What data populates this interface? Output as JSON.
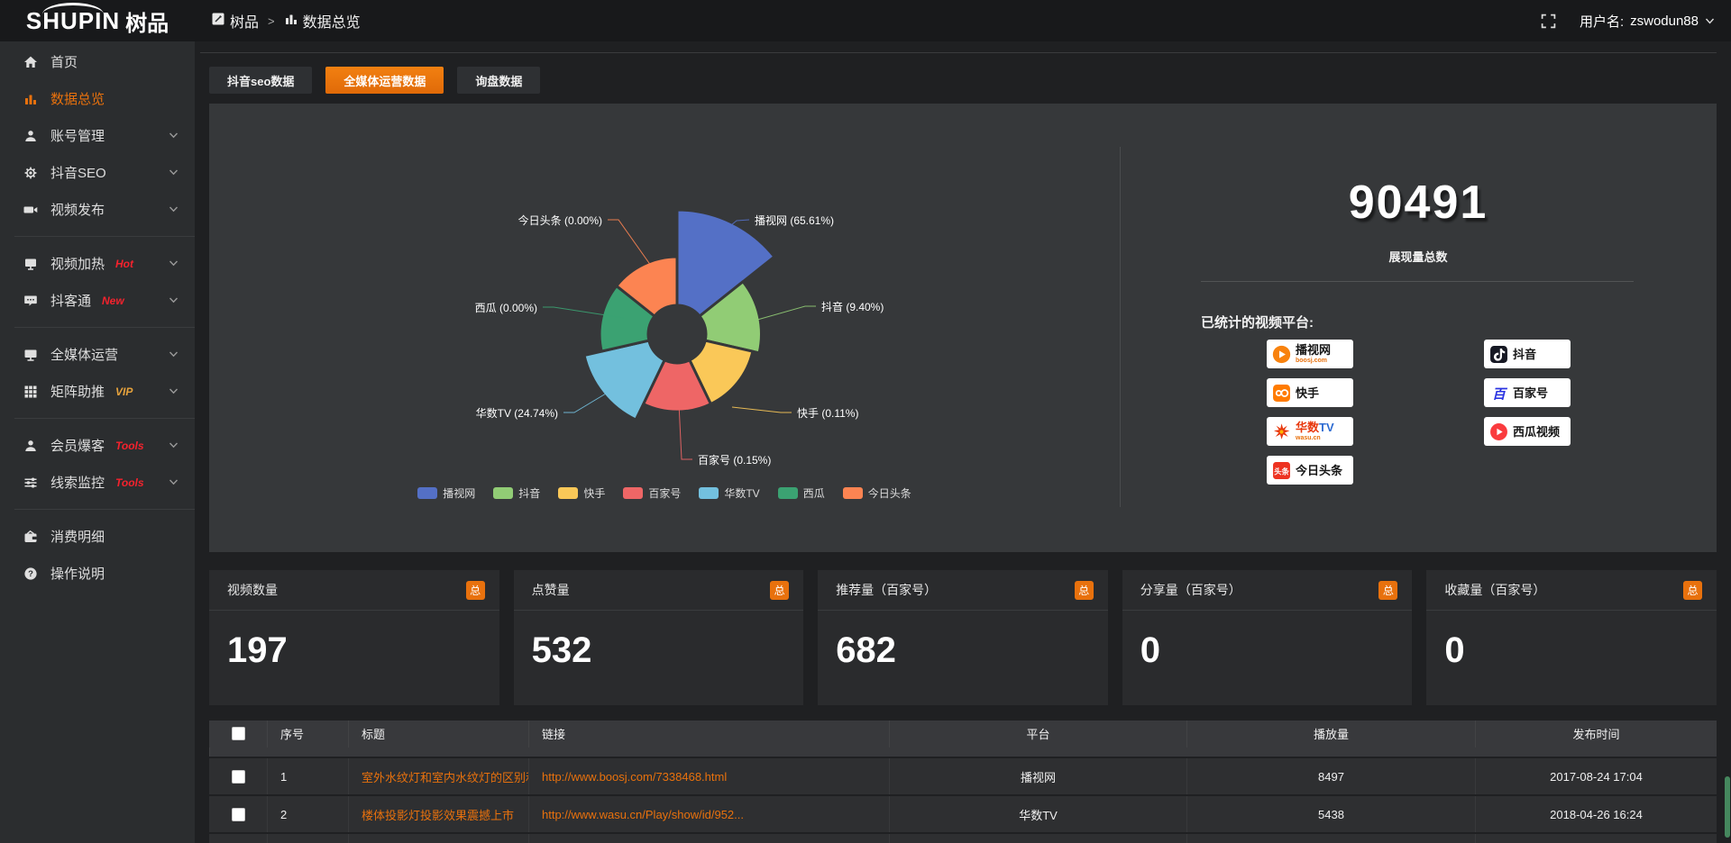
{
  "header": {
    "logo_en": "SHUPIN",
    "logo_cjk": "树品",
    "breadcrumb_home": "树品",
    "breadcrumb_sep": ">",
    "breadcrumb_current": "数据总览",
    "username_label": "用户名:",
    "username": "zswodun88"
  },
  "sidebar": {
    "items": [
      {
        "label": "首页",
        "icon": "home-icon"
      },
      {
        "label": "数据总览",
        "icon": "chart-icon",
        "active": true
      },
      {
        "label": "账号管理",
        "icon": "user-icon",
        "chevron": true
      },
      {
        "label": "抖音SEO",
        "icon": "gear-icon",
        "chevron": true
      },
      {
        "label": "视频发布",
        "icon": "video-icon",
        "chevron": true,
        "divider_after": true
      },
      {
        "label": "视频加热",
        "icon": "heat-icon",
        "badge": "Hot",
        "badge_color": "#f5222d",
        "chevron": true
      },
      {
        "label": "抖客通",
        "icon": "chat-icon",
        "badge": "New",
        "badge_color": "#f5222d",
        "chevron": true,
        "divider_after": true
      },
      {
        "label": "全媒体运营",
        "icon": "monitor-icon",
        "chevron": true
      },
      {
        "label": "矩阵助推",
        "icon": "grid-icon",
        "badge": "VIP",
        "badge_color": "#e6a23c",
        "chevron": true,
        "divider_after": true
      },
      {
        "label": "会员爆客",
        "icon": "member-icon",
        "badge": "Tools",
        "badge_color": "#f5222d",
        "chevron": true
      },
      {
        "label": "线索监控",
        "icon": "sliders-icon",
        "badge": "Tools",
        "badge_color": "#f5222d",
        "chevron": true,
        "divider_after": true
      },
      {
        "label": "消费明细",
        "icon": "wallet-icon"
      },
      {
        "label": "操作说明",
        "icon": "help-icon"
      }
    ]
  },
  "tabs": [
    {
      "label": "抖音seo数据",
      "active": false
    },
    {
      "label": "全媒体运营数据",
      "active": true
    },
    {
      "label": "询盘数据",
      "active": false
    }
  ],
  "chart_data": {
    "type": "pie",
    "subtype": "nightingale-rose",
    "title": "",
    "legend_position": "bottom",
    "items": [
      {
        "name": "播视网",
        "pct": 65.61,
        "pct_label": "播视网 (65.61%)",
        "color": "#5470c6"
      },
      {
        "name": "抖音",
        "pct": 9.4,
        "pct_label": "抖音 (9.40%)",
        "color": "#91cc75"
      },
      {
        "name": "快手",
        "pct": 0.11,
        "pct_label": "快手 (0.11%)",
        "color": "#fac858"
      },
      {
        "name": "百家号",
        "pct": 0.15,
        "pct_label": "百家号 (0.15%)",
        "color": "#ee6666"
      },
      {
        "name": "华数TV",
        "pct": 24.74,
        "pct_label": "华数TV (24.74%)",
        "color": "#73c0de"
      },
      {
        "name": "西瓜",
        "pct": 0.0,
        "pct_label": "西瓜 (0.00%)",
        "color": "#3ba272"
      },
      {
        "name": "今日头条",
        "pct": 0.0,
        "pct_label": "今日头条 (0.00%)",
        "color": "#fc8452"
      }
    ]
  },
  "summary": {
    "total_value": "90491",
    "total_label": "展现量总数",
    "platforms_label": "已统计的视频平台:",
    "platforms": [
      {
        "name": "播视网",
        "sub": "boosj.com",
        "logo": "boosj-logo"
      },
      {
        "name": "抖音",
        "logo": "douyin-logo"
      },
      {
        "name": "快手",
        "logo": "kuaishou-logo"
      },
      {
        "name": "百家号",
        "logo": "baijiahao-logo"
      },
      {
        "name": "华数TV",
        "sub": "wasu.cn",
        "logo": "wasu-logo"
      },
      {
        "name": "西瓜视频",
        "logo": "xigua-logo"
      },
      {
        "name": "今日头条",
        "logo": "toutiao-logo"
      }
    ]
  },
  "stat_cards": [
    {
      "title": "视频数量",
      "badge": "总",
      "value": "197"
    },
    {
      "title": "点赞量",
      "badge": "总",
      "value": "532"
    },
    {
      "title": "推荐量（百家号）",
      "badge": "总",
      "value": "682"
    },
    {
      "title": "分享量（百家号）",
      "badge": "总",
      "value": "0"
    },
    {
      "title": "收藏量（百家号）",
      "badge": "总",
      "value": "0"
    }
  ],
  "table": {
    "columns": [
      "序号",
      "标题",
      "链接",
      "平台",
      "播放量",
      "发布时间"
    ],
    "rows": [
      {
        "index": "1",
        "title": "室外水纹灯和室内水纹灯的区别和简介",
        "link": "http://www.boosj.com/7338468.html",
        "platform": "播视网",
        "views": "8497",
        "time": "2017-08-24 17:04"
      },
      {
        "index": "2",
        "title": "楼体投影灯投影效果震撼上市",
        "link": "http://www.wasu.cn/Play/show/id/952...",
        "platform": "华数TV",
        "views": "5438",
        "time": "2018-04-26 16:24"
      }
    ]
  },
  "colors": {
    "accent": "#e8710d",
    "hot_badge": "#f5222d",
    "vip_badge": "#e6a23c",
    "panel_bg": "#36383a"
  }
}
